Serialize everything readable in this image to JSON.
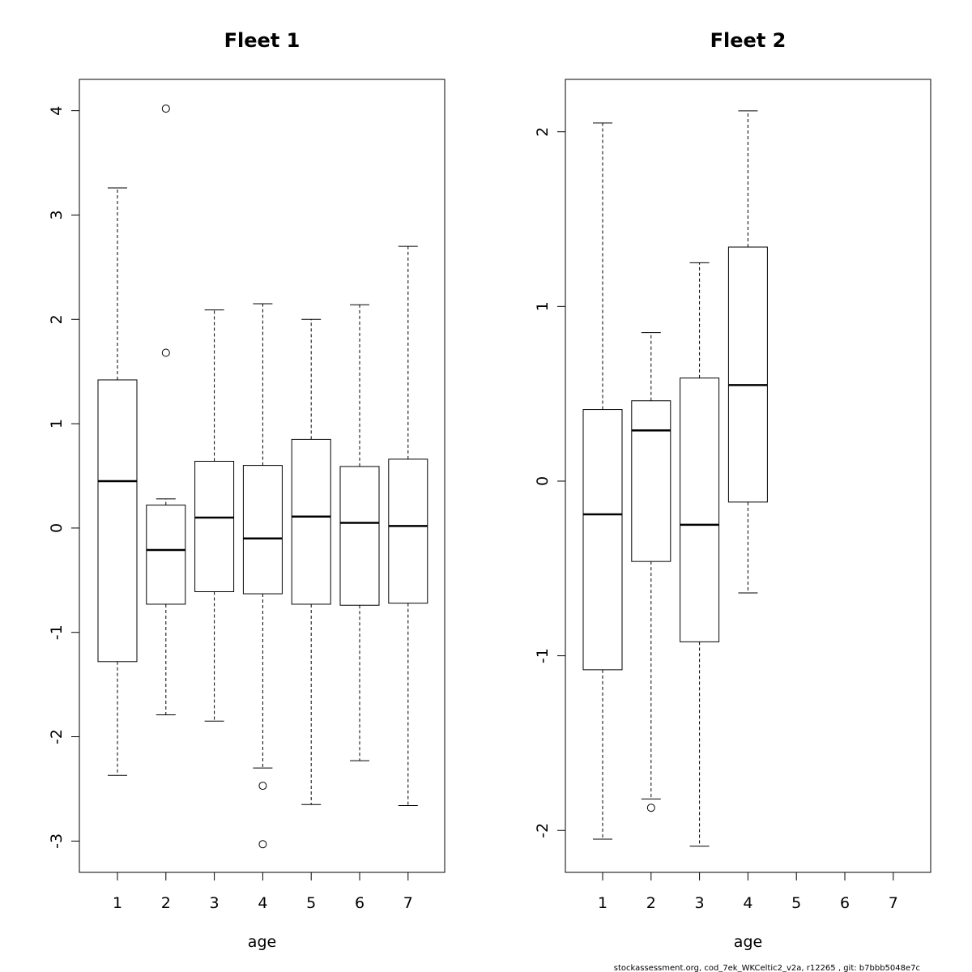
{
  "chart_data": [
    {
      "type": "boxplot",
      "title": "Fleet 1",
      "xlabel": "age",
      "ylabel": "",
      "categories": [
        "1",
        "2",
        "3",
        "4",
        "5",
        "6",
        "7"
      ],
      "ylim": [
        -3.3,
        4.3
      ],
      "yticks": [
        -3,
        -2,
        -1,
        0,
        1,
        2,
        3,
        4
      ],
      "yticklabels": [
        "-3",
        "-2",
        "-1",
        "0",
        "1",
        "2",
        "3",
        "4"
      ],
      "boxes": [
        {
          "age": "1",
          "whisker_low": -2.37,
          "q1": -1.28,
          "median": 0.45,
          "q3": 1.42,
          "whisker_high": 3.26,
          "outliers": []
        },
        {
          "age": "2",
          "whisker_low": -1.79,
          "q1": -0.73,
          "median": -0.21,
          "q3": 0.22,
          "whisker_high": 0.28,
          "outliers": [
            1.68,
            4.02
          ]
        },
        {
          "age": "3",
          "whisker_low": -1.85,
          "q1": -0.61,
          "median": 0.1,
          "q3": 0.64,
          "whisker_high": 2.09,
          "outliers": []
        },
        {
          "age": "4",
          "whisker_low": -2.3,
          "q1": -0.63,
          "median": -0.1,
          "q3": 0.6,
          "whisker_high": 2.15,
          "outliers": [
            -2.47,
            -3.03
          ]
        },
        {
          "age": "5",
          "whisker_low": -2.65,
          "q1": -0.73,
          "median": 0.11,
          "q3": 0.85,
          "whisker_high": 2.0,
          "outliers": []
        },
        {
          "age": "6",
          "whisker_low": -2.23,
          "q1": -0.74,
          "median": 0.05,
          "q3": 0.59,
          "whisker_high": 2.14,
          "outliers": []
        },
        {
          "age": "7",
          "whisker_low": -2.66,
          "q1": -0.72,
          "median": 0.02,
          "q3": 0.66,
          "whisker_high": 2.7,
          "outliers": []
        }
      ]
    },
    {
      "type": "boxplot",
      "title": "Fleet 2",
      "xlabel": "age",
      "ylabel": "",
      "categories": [
        "1",
        "2",
        "3",
        "4",
        "5",
        "6",
        "7"
      ],
      "ylim": [
        -2.24,
        2.3
      ],
      "yticks": [
        -2,
        -1,
        0,
        1,
        2
      ],
      "yticklabels": [
        "-2",
        "-1",
        "0",
        "1",
        "2"
      ],
      "boxes": [
        {
          "age": "1",
          "whisker_low": -2.05,
          "q1": -1.08,
          "median": -0.19,
          "q3": 0.41,
          "whisker_high": 2.05,
          "outliers": []
        },
        {
          "age": "2",
          "whisker_low": -1.82,
          "q1": -0.46,
          "median": 0.29,
          "q3": 0.46,
          "whisker_high": 0.85,
          "outliers": [
            -1.87
          ]
        },
        {
          "age": "3",
          "whisker_low": -2.09,
          "q1": -0.92,
          "median": -0.25,
          "q3": 0.59,
          "whisker_high": 1.25,
          "outliers": []
        },
        {
          "age": "4",
          "whisker_low": -0.64,
          "q1": -0.12,
          "median": 0.55,
          "q3": 1.34,
          "whisker_high": 2.12,
          "outliers": []
        }
      ]
    }
  ],
  "footnote": "stockassessment.org, cod_7ek_WKCeltic2_v2a, r12265 , git: b7bbb5048e7c"
}
